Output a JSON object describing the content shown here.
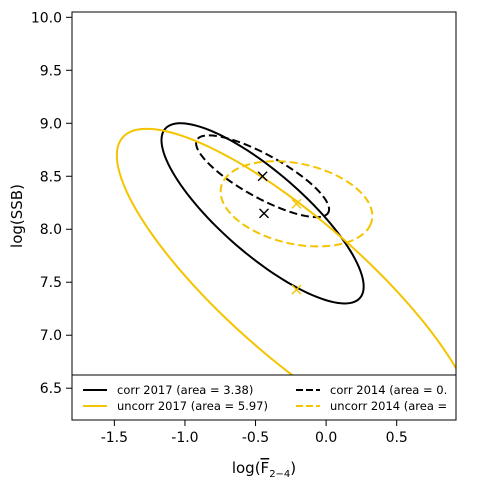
{
  "chart_data": {
    "type": "scatter",
    "xlabel_main": "log(",
    "xlabel_f": "F",
    "xlabel_sub": "2−4",
    "xlabel_close": ")",
    "ylabel": "log(SSB)",
    "xlim": [
      -1.8,
      0.92
    ],
    "ylim": [
      6.2,
      10.05
    ],
    "xticks": [
      -1.5,
      -1.0,
      -0.5,
      0.0,
      0.5
    ],
    "xtick_labels": [
      "-1.5",
      "-1.0",
      "-0.5",
      "0.0",
      "0.5"
    ],
    "yticks": [
      6.5,
      7.0,
      7.5,
      8.0,
      8.5,
      9.0,
      9.5,
      10.0
    ],
    "ytick_labels": [
      "6.5",
      "7.0",
      "7.5",
      "8.0",
      "8.5",
      "9.0",
      "9.5",
      "10.0"
    ],
    "grid": false,
    "legend_position": "bottom",
    "colors": {
      "corr": "#000000",
      "uncorr": "#f5c400"
    },
    "series": [
      {
        "name": "corr 2017 (area = 3.38)",
        "color": "#000000",
        "dash": "solid",
        "ellipse": {
          "cx": -0.45,
          "cy": 8.15,
          "rx": 1.06,
          "ry": 0.335,
          "angle_deg": -51
        },
        "points": [
          {
            "x": -0.44,
            "y": 8.15
          }
        ]
      },
      {
        "name": "corr 2014 (area = 0.",
        "color": "#000000",
        "dash": "dashed",
        "ellipse": {
          "cx": -0.45,
          "cy": 8.5,
          "rx": 0.58,
          "ry": 0.185,
          "angle_deg": -38
        },
        "points": [
          {
            "x": -0.45,
            "y": 8.5
          }
        ]
      },
      {
        "name": "uncorr 2017 (area = 5.97)",
        "color": "#f5c400",
        "dash": "solid",
        "ellipse": {
          "cx": -0.21,
          "cy": 7.43,
          "rx": 1.9,
          "ry": 0.56,
          "angle_deg": -51
        },
        "points": [
          {
            "x": -0.21,
            "y": 7.43
          }
        ]
      },
      {
        "name": "uncorr 2014 (area =",
        "color": "#f5c400",
        "dash": "dashed",
        "ellipse": {
          "cx": -0.21,
          "cy": 8.24,
          "rx": 0.56,
          "ry": 0.37,
          "angle_deg": -22
        },
        "points": [
          {
            "x": -0.21,
            "y": 8.24
          }
        ]
      }
    ]
  }
}
